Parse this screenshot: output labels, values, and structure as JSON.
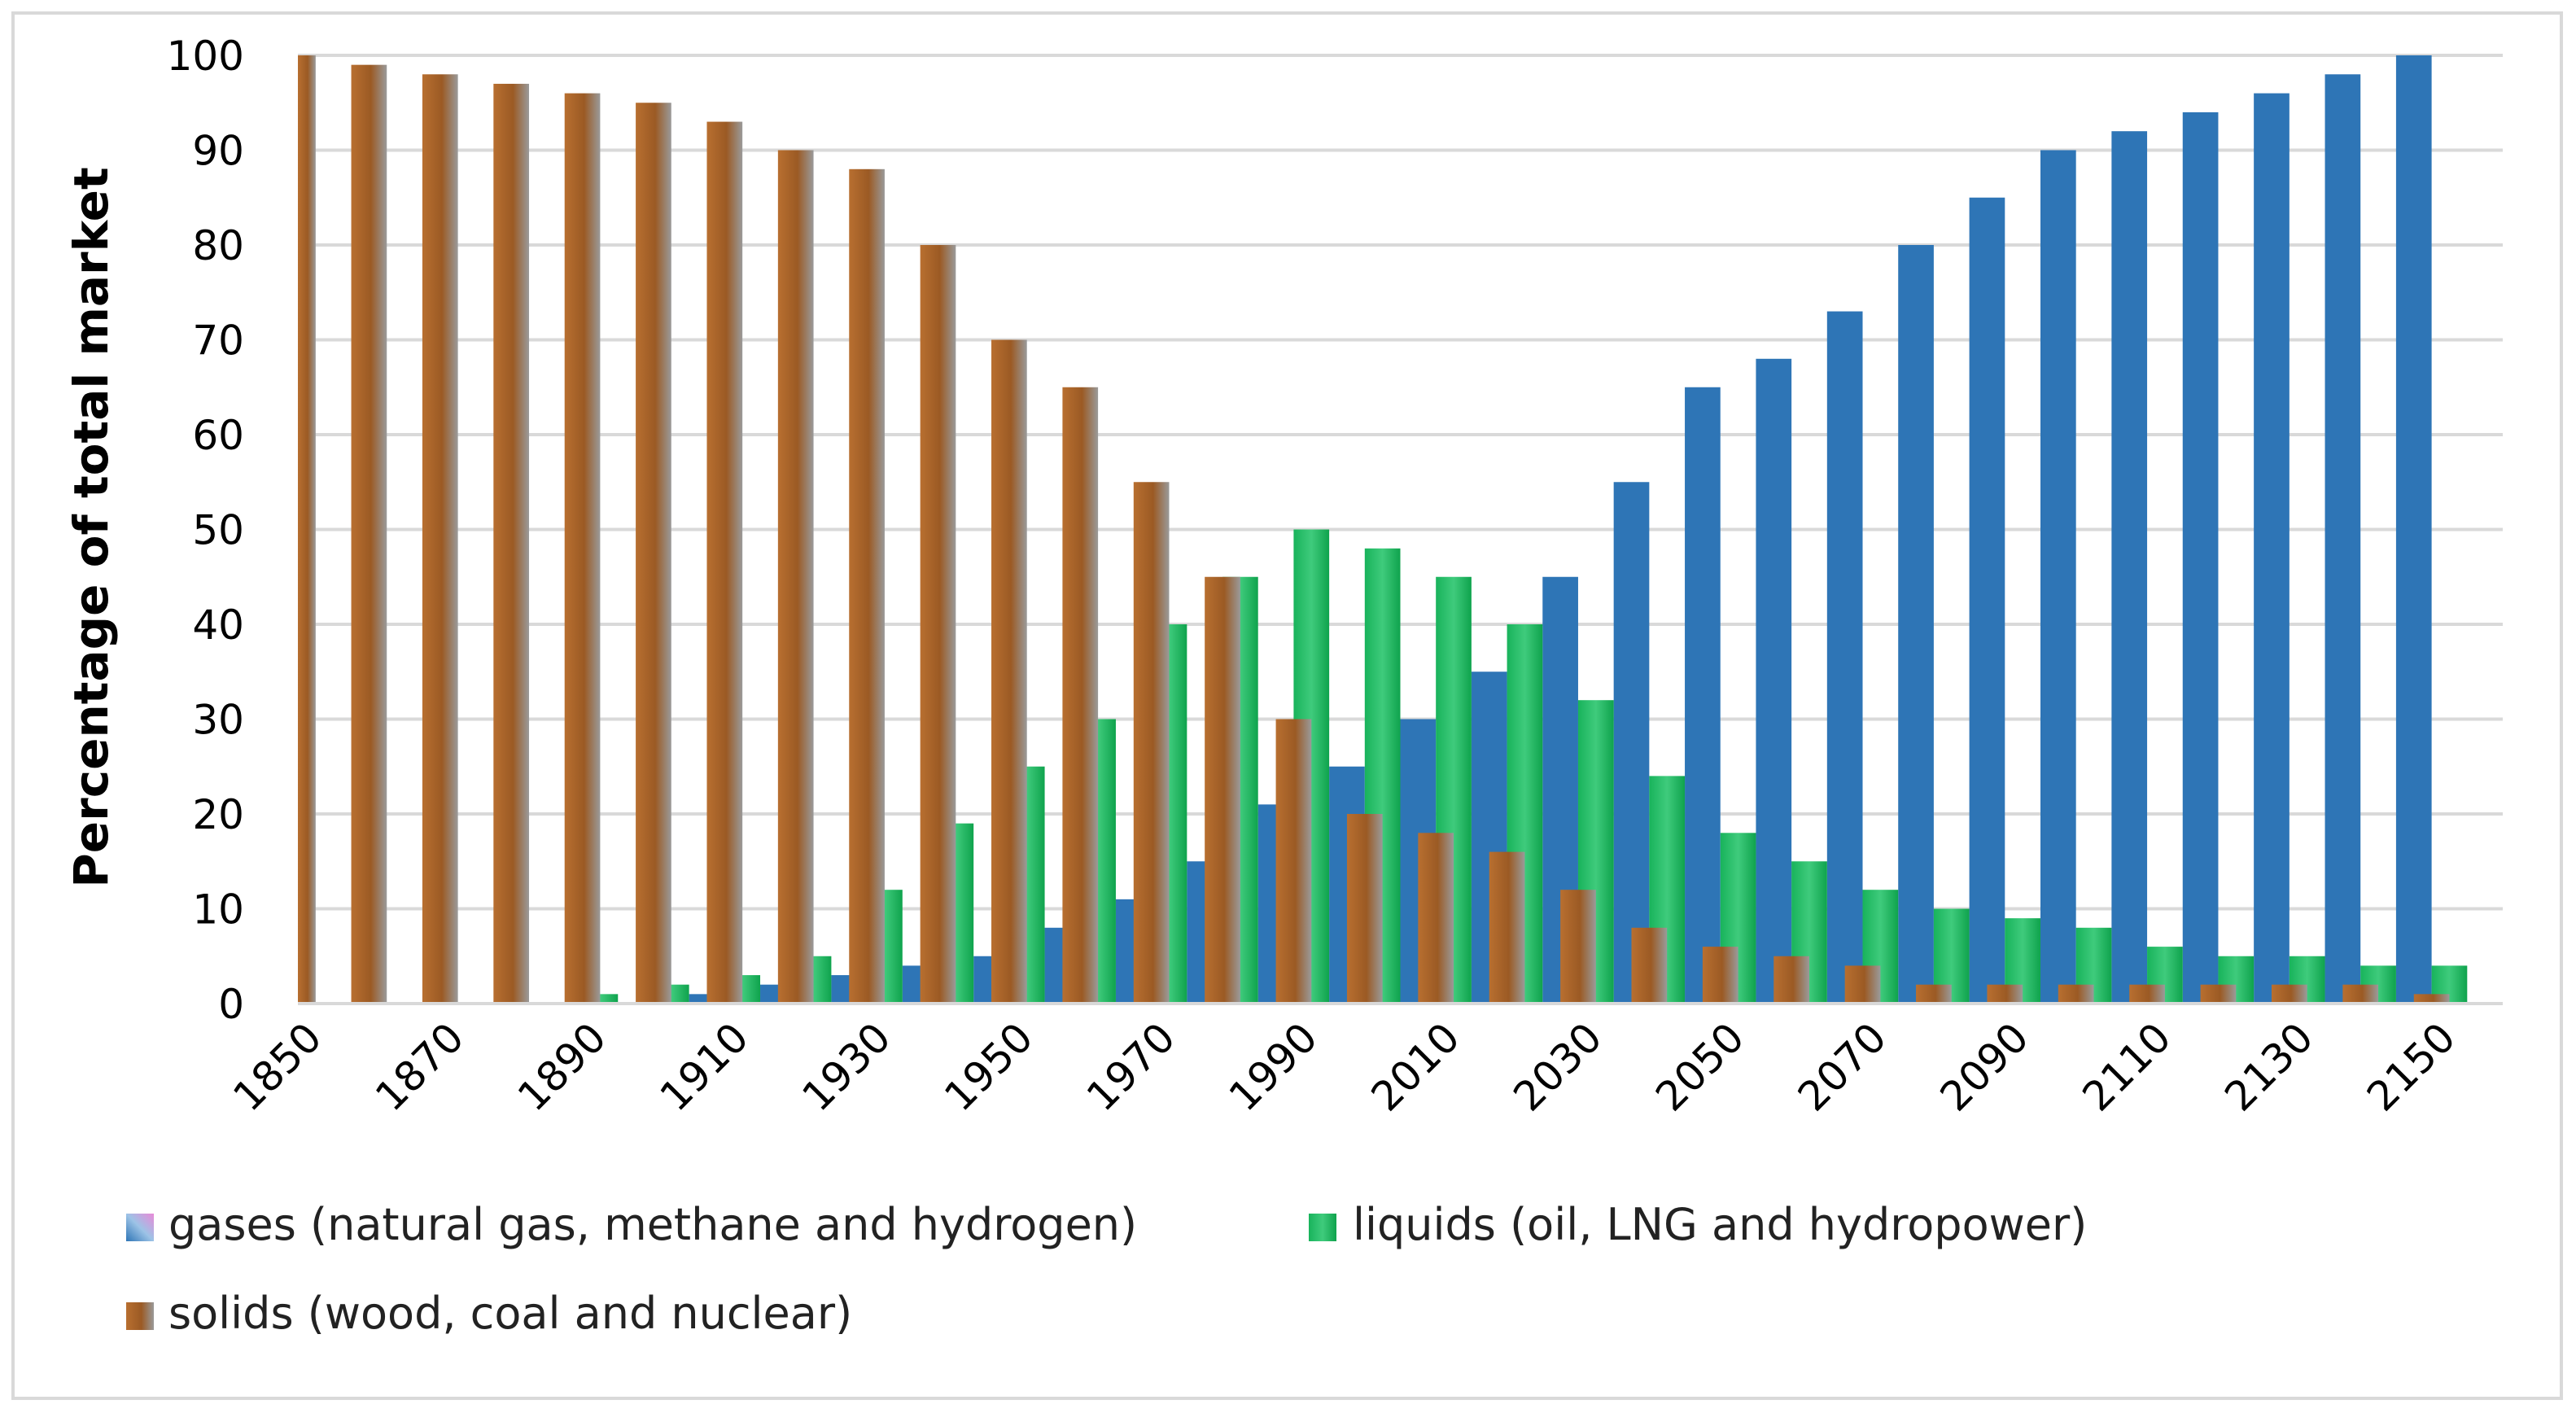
{
  "chart_data": {
    "type": "bar",
    "title": "",
    "xlabel": "",
    "ylabel": "Percentage of total market",
    "ylim": [
      0,
      100
    ],
    "yticks": [
      "0",
      "10",
      "20",
      "30",
      "40",
      "50",
      "60",
      "70",
      "80",
      "90",
      "100"
    ],
    "xtick_labels": [
      "1850",
      "1870",
      "1890",
      "1910",
      "1930",
      "1950",
      "1970",
      "1990",
      "2010",
      "2030",
      "2050",
      "2070",
      "2090",
      "2110",
      "2130",
      "2150"
    ],
    "grid": true,
    "legend_position": "bottom",
    "categories": [
      "1850",
      "1860",
      "1870",
      "1880",
      "1890",
      "1900",
      "1910",
      "1920",
      "1930",
      "1940",
      "1950",
      "1960",
      "1970",
      "1980",
      "1990",
      "2000",
      "2010",
      "2020",
      "2030",
      "2040",
      "2050",
      "2060",
      "2070",
      "2080",
      "2090",
      "2100",
      "2110",
      "2120",
      "2130",
      "2140",
      "2150"
    ],
    "series": [
      {
        "name": "gases (natural gas, methane and hydrogen)",
        "colors": [
          "#2e75b6",
          "#9dc3e6",
          "#e98ad8"
        ],
        "values": [
          0,
          0,
          0,
          0,
          0,
          0,
          1,
          2,
          3,
          4,
          5,
          8,
          11,
          15,
          21,
          25,
          30,
          35,
          45,
          55,
          65,
          68,
          73,
          80,
          85,
          90,
          92,
          94,
          96,
          98,
          100
        ]
      },
      {
        "name": "liquids (oil, LNG and hydropower)",
        "colors": [
          "#00b050",
          "#5fcf8c"
        ],
        "values": [
          0,
          0,
          0,
          0,
          1,
          2,
          3,
          5,
          12,
          19,
          25,
          30,
          40,
          45,
          50,
          48,
          45,
          40,
          32,
          24,
          18,
          15,
          12,
          10,
          9,
          8,
          6,
          5,
          5,
          4,
          4
        ]
      },
      {
        "name": "solids (wood, coal and nuclear)",
        "colors": [
          "#a0602a",
          "#c9935f"
        ],
        "values": [
          100,
          99,
          98,
          97,
          96,
          95,
          93,
          90,
          88,
          80,
          70,
          65,
          55,
          45,
          30,
          20,
          18,
          16,
          12,
          8,
          6,
          5,
          4,
          2,
          2,
          2,
          2,
          2,
          2,
          2,
          1
        ]
      }
    ]
  }
}
